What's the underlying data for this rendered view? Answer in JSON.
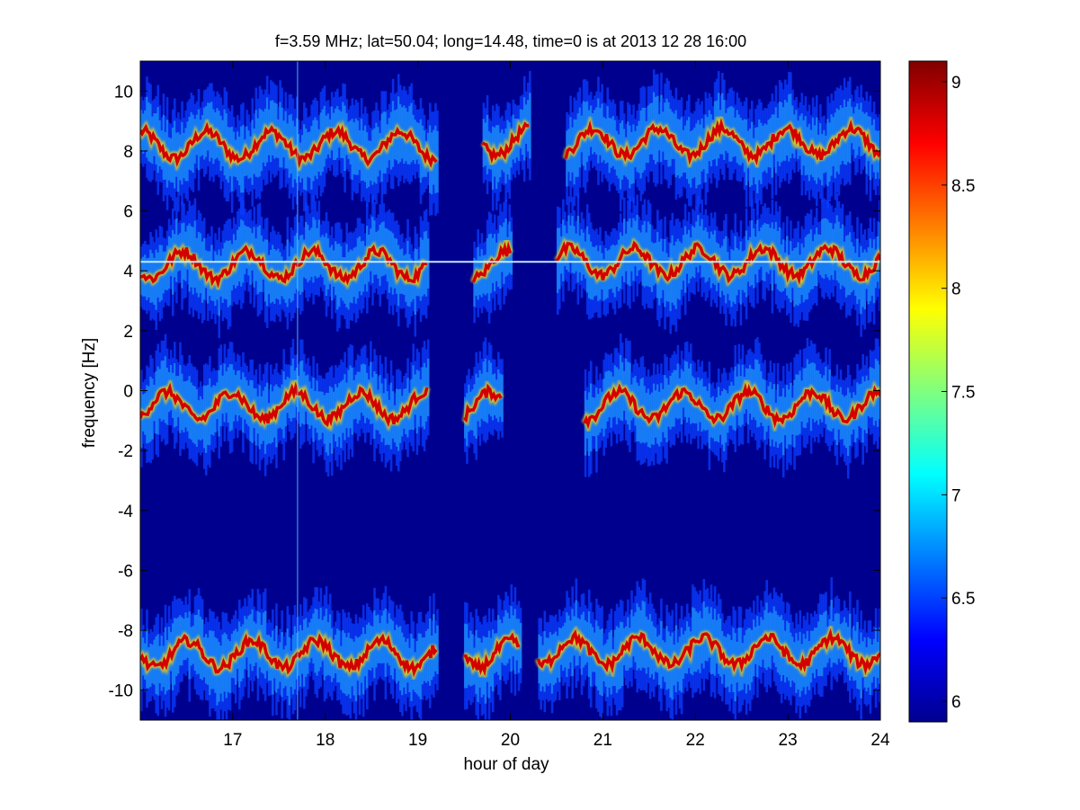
{
  "chart_data": {
    "type": "heatmap",
    "title": "f=3.59 MHz;  lat=50.04; long=14.48, time=0 is at 2013 12 28 16:00",
    "xlabel": "hour of day",
    "ylabel": "frequency [Hz]",
    "xlim": [
      16,
      24
    ],
    "ylim": [
      -11,
      11
    ],
    "xticks": [
      "17",
      "18",
      "19",
      "20",
      "21",
      "22",
      "23",
      "24"
    ],
    "yticks": [
      "10",
      "8",
      "6",
      "4",
      "2",
      "0",
      "-2",
      "-4",
      "-6",
      "-8",
      "-10"
    ],
    "colorbar": {
      "range": [
        5.9,
        9.1
      ],
      "ticks": [
        "9",
        "8.5",
        "8",
        "7.5",
        "7",
        "6.5",
        "6"
      ],
      "colormap": "jet"
    },
    "background_color": "#00008f",
    "bands": [
      {
        "center_hz": 8.2,
        "start_hour": 16.0,
        "end_hour": 19.2
      },
      {
        "center_hz": 8.3,
        "start_hour": 19.7,
        "end_hour": 20.2
      },
      {
        "center_hz": 8.3,
        "start_hour": 20.6,
        "end_hour": 24.0
      },
      {
        "center_hz": 4.2,
        "start_hour": 16.0,
        "end_hour": 19.1
      },
      {
        "center_hz": 4.2,
        "start_hour": 19.6,
        "end_hour": 20.0
      },
      {
        "center_hz": 4.3,
        "start_hour": 20.5,
        "end_hour": 24.0
      },
      {
        "center_hz": -0.5,
        "start_hour": 16.0,
        "end_hour": 19.1
      },
      {
        "center_hz": -0.5,
        "start_hour": 19.5,
        "end_hour": 19.9
      },
      {
        "center_hz": -0.5,
        "start_hour": 20.8,
        "end_hour": 24.0
      },
      {
        "center_hz": -8.8,
        "start_hour": 16.0,
        "end_hour": 19.2
      },
      {
        "center_hz": -8.8,
        "start_hour": 19.5,
        "end_hour": 20.1
      },
      {
        "center_hz": -8.7,
        "start_hour": 20.3,
        "end_hour": 24.0
      }
    ],
    "steady_line_hz": 4.3,
    "grid": false
  }
}
